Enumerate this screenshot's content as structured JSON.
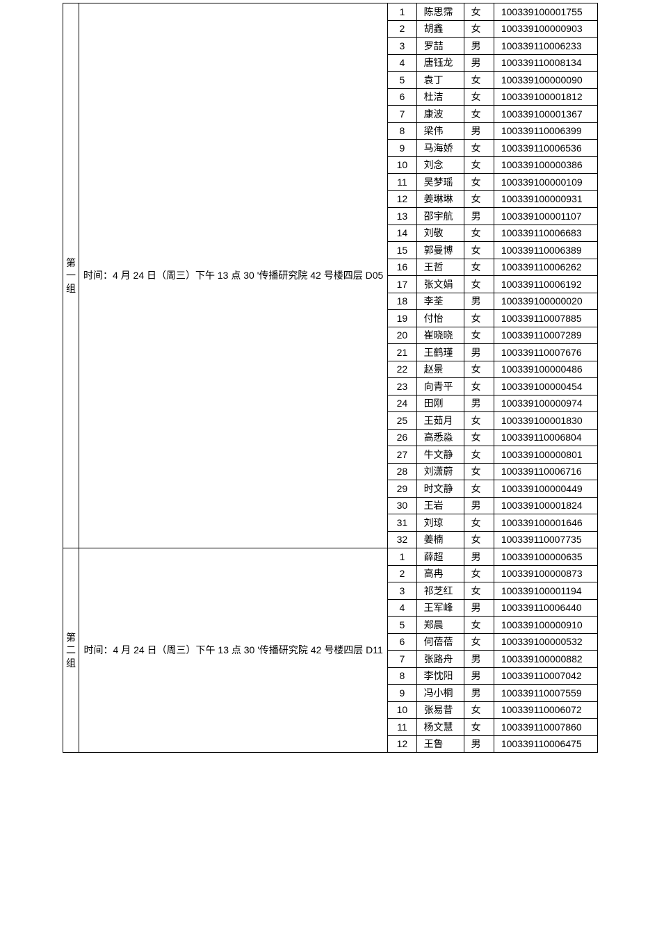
{
  "groups": [
    {
      "label": "第一组",
      "info": "时间：4 月 24 日（周三）下午 13 点 30 '传播研究院 42 号楼四层 D05",
      "rows": [
        {
          "idx": "1",
          "name": "陈思霈",
          "gender": "女",
          "id": "100339100001755"
        },
        {
          "idx": "2",
          "name": "胡鑫",
          "gender": "女",
          "id": "100339100000903"
        },
        {
          "idx": "3",
          "name": "罗喆",
          "gender": "男",
          "id": "100339110006233"
        },
        {
          "idx": "4",
          "name": "唐钰龙",
          "gender": "男",
          "id": "100339110008134"
        },
        {
          "idx": "5",
          "name": "袁丁",
          "gender": "女",
          "id": "100339100000090"
        },
        {
          "idx": "6",
          "name": "杜洁",
          "gender": "女",
          "id": "100339100001812"
        },
        {
          "idx": "7",
          "name": "康波",
          "gender": "女",
          "id": "100339100001367"
        },
        {
          "idx": "8",
          "name": "梁伟",
          "gender": "男",
          "id": "100339110006399"
        },
        {
          "idx": "9",
          "name": "马海娇",
          "gender": "女",
          "id": "100339110006536"
        },
        {
          "idx": "10",
          "name": "刘念",
          "gender": "女",
          "id": "100339100000386"
        },
        {
          "idx": "11",
          "name": "吴梦瑶",
          "gender": "女",
          "id": "100339100000109"
        },
        {
          "idx": "12",
          "name": "姜琳琳",
          "gender": "女",
          "id": "100339100000931"
        },
        {
          "idx": "13",
          "name": "邵宇航",
          "gender": "男",
          "id": "100339100001107"
        },
        {
          "idx": "14",
          "name": "刘敬",
          "gender": "女",
          "id": "100339110006683"
        },
        {
          "idx": "15",
          "name": "郭曼博",
          "gender": "女",
          "id": "100339110006389"
        },
        {
          "idx": "16",
          "name": "王哲",
          "gender": "女",
          "id": "100339110006262"
        },
        {
          "idx": "17",
          "name": "张文娟",
          "gender": "女",
          "id": "100339110006192"
        },
        {
          "idx": "18",
          "name": "李荃",
          "gender": "男",
          "id": "100339100000020"
        },
        {
          "idx": "19",
          "name": "付怡",
          "gender": "女",
          "id": "100339110007885"
        },
        {
          "idx": "20",
          "name": "崔晓晓",
          "gender": "女",
          "id": "100339110007289"
        },
        {
          "idx": "21",
          "name": "王鹤瑾",
          "gender": "男",
          "id": "100339110007676"
        },
        {
          "idx": "22",
          "name": "赵景",
          "gender": "女",
          "id": "100339100000486"
        },
        {
          "idx": "23",
          "name": "向青平",
          "gender": "女",
          "id": "100339100000454"
        },
        {
          "idx": "24",
          "name": "田刚",
          "gender": "男",
          "id": "100339100000974"
        },
        {
          "idx": "25",
          "name": "王茹月",
          "gender": "女",
          "id": "100339100001830"
        },
        {
          "idx": "26",
          "name": "高悉淼",
          "gender": "女",
          "id": "100339110006804"
        },
        {
          "idx": "27",
          "name": "牛文静",
          "gender": "女",
          "id": "100339100000801"
        },
        {
          "idx": "28",
          "name": "刘潇蔚",
          "gender": "女",
          "id": "100339110006716"
        },
        {
          "idx": "29",
          "name": "时文静",
          "gender": "女",
          "id": "100339100000449"
        },
        {
          "idx": "30",
          "name": "王岩",
          "gender": "男",
          "id": "100339100001824"
        },
        {
          "idx": "31",
          "name": "刘琼",
          "gender": "女",
          "id": "100339100001646"
        },
        {
          "idx": "32",
          "name": "姜楠",
          "gender": "女",
          "id": "100339110007735"
        }
      ]
    },
    {
      "label": "第二组",
      "info": "时间：4 月 24 日（周三）下午 13 点 30 '传播研究院 42 号楼四层 D11",
      "rows": [
        {
          "idx": "1",
          "name": "薛超",
          "gender": "男",
          "id": "100339100000635"
        },
        {
          "idx": "2",
          "name": "高冉",
          "gender": "女",
          "id": "100339100000873"
        },
        {
          "idx": "3",
          "name": "祁芝红",
          "gender": "女",
          "id": "100339100001194"
        },
        {
          "idx": "4",
          "name": "王军峰",
          "gender": "男",
          "id": "100339110006440"
        },
        {
          "idx": "5",
          "name": "郑晨",
          "gender": "女",
          "id": "100339100000910"
        },
        {
          "idx": "6",
          "name": "何蓓蓓",
          "gender": "女",
          "id": "100339100000532"
        },
        {
          "idx": "7",
          "name": "张路舟",
          "gender": "男",
          "id": "100339100000882"
        },
        {
          "idx": "8",
          "name": "李忱阳",
          "gender": "男",
          "id": "100339110007042"
        },
        {
          "idx": "9",
          "name": "冯小桐",
          "gender": "男",
          "id": "100339110007559"
        },
        {
          "idx": "10",
          "name": "张易昔",
          "gender": "女",
          "id": "100339110006072"
        },
        {
          "idx": "11",
          "name": "杨文慧",
          "gender": "女",
          "id": "100339110007860"
        },
        {
          "idx": "12",
          "name": "王鲁",
          "gender": "男",
          "id": "100339110006475"
        }
      ]
    }
  ]
}
